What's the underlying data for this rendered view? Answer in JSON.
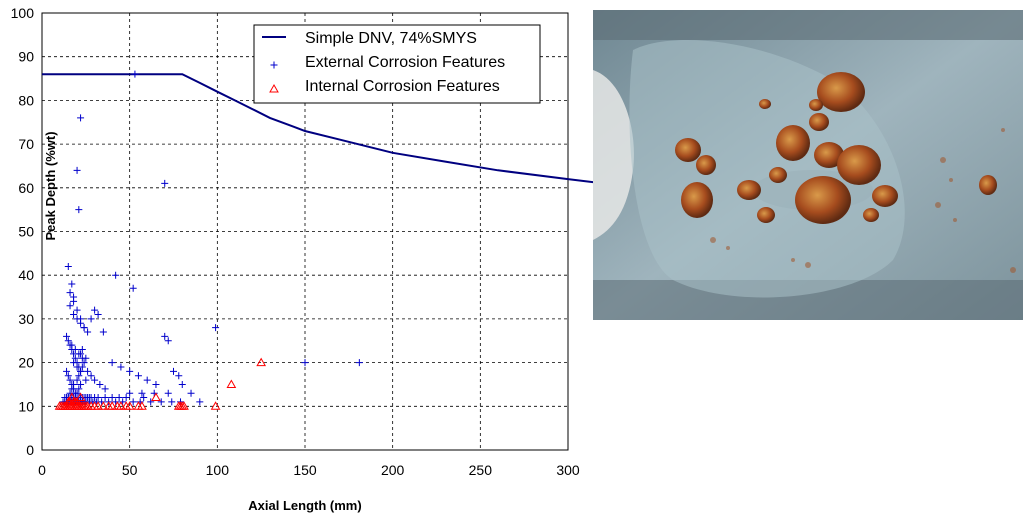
{
  "chart_data": {
    "type": "scatter",
    "title": "",
    "xlabel": "Axial Length (mm)",
    "ylabel": "Peak Depth (%wt)",
    "xlim": [
      0,
      300
    ],
    "ylim": [
      0,
      100
    ],
    "xticks": [
      0,
      50,
      100,
      150,
      200,
      250,
      300
    ],
    "yticks": [
      0,
      10,
      20,
      30,
      40,
      50,
      60,
      70,
      80,
      90,
      100
    ],
    "grid": "dashed",
    "legend_position": "top-right",
    "series": [
      {
        "name": "Simple DNV,  74%SMYS",
        "type": "line",
        "color": "#000080",
        "x": [
          0,
          80,
          90,
          100,
          110,
          120,
          130,
          140,
          150,
          170,
          200,
          230,
          260,
          300,
          320
        ],
        "y": [
          86,
          86,
          84,
          82,
          80,
          78,
          76,
          74.5,
          73,
          71,
          68,
          66,
          64,
          62,
          61
        ]
      },
      {
        "name": "External Corrosion Features",
        "type": "scatter",
        "marker": "+",
        "color": "#0000CC",
        "x": [
          22,
          20,
          21,
          70,
          53,
          15,
          17,
          18,
          42,
          52,
          16,
          18,
          20,
          22,
          24,
          26,
          28,
          30,
          32,
          35,
          14,
          15,
          16,
          17,
          18,
          19,
          20,
          21,
          22,
          23,
          14,
          15,
          16,
          17,
          18,
          19,
          20,
          21,
          22,
          23,
          24,
          25,
          26,
          15,
          16,
          17,
          18,
          19,
          20,
          21,
          22,
          25,
          28,
          30,
          33,
          36,
          40,
          45,
          50,
          55,
          60,
          65,
          70,
          72,
          75,
          78,
          80,
          85,
          99,
          150,
          181,
          12,
          13,
          14,
          15,
          16,
          17,
          18,
          19,
          20,
          21,
          22,
          23,
          24,
          25,
          27,
          29,
          31,
          34,
          38,
          42,
          46,
          48,
          52,
          56,
          58,
          62,
          68,
          74,
          79,
          90,
          13,
          14,
          15,
          16,
          17,
          18,
          19,
          20,
          21,
          22,
          23,
          24,
          25,
          26,
          27,
          28,
          30,
          32,
          36,
          40,
          44,
          50,
          57,
          64,
          72,
          16,
          18,
          20,
          22,
          24,
          17,
          19,
          21,
          23,
          18,
          20,
          22
        ],
        "y": [
          76,
          64,
          55,
          61,
          86,
          42,
          38,
          35,
          40,
          37,
          33,
          31,
          30,
          29,
          28,
          27,
          30,
          32,
          31,
          27,
          26,
          25,
          24,
          23,
          22,
          21,
          20,
          19,
          22,
          23,
          18,
          17,
          16,
          15,
          14,
          13,
          16,
          17,
          18,
          19,
          20,
          21,
          18,
          12,
          13,
          14,
          15,
          12,
          13,
          14,
          15,
          16,
          17,
          16,
          15,
          14,
          20,
          19,
          18,
          17,
          16,
          15,
          26,
          25,
          18,
          17,
          15,
          13,
          28,
          20,
          20,
          11,
          11,
          11,
          11,
          11,
          11,
          11,
          11,
          11,
          11,
          11,
          11,
          11,
          11,
          11,
          11,
          11,
          11,
          11,
          11,
          11,
          12,
          11,
          11,
          12,
          11,
          11,
          11,
          11,
          11,
          12,
          12,
          12,
          12,
          12,
          12,
          12,
          12,
          12,
          12,
          12,
          12,
          12,
          12,
          12,
          12,
          12,
          12,
          12,
          12,
          12,
          13,
          13,
          13,
          13,
          36,
          34,
          32,
          30,
          28,
          24,
          23,
          22,
          21,
          20,
          19,
          18
        ]
      },
      {
        "name": "Internal Corrosion Features",
        "type": "scatter",
        "marker": "triangle",
        "color": "#FF0000",
        "x": [
          10,
          11,
          12,
          13,
          14,
          15,
          16,
          17,
          18,
          19,
          20,
          21,
          22,
          23,
          24,
          25,
          26,
          28,
          30,
          32,
          35,
          38,
          40,
          43,
          45,
          48,
          50,
          55,
          57,
          65,
          78,
          79,
          80,
          81,
          99,
          108,
          125,
          16,
          18,
          20,
          22,
          15,
          17,
          19
        ],
        "y": [
          10,
          10,
          10,
          10,
          10,
          10,
          10,
          10,
          10,
          10,
          10,
          10,
          10,
          10,
          10,
          10,
          10,
          10,
          10,
          10,
          10,
          10,
          10,
          10,
          10,
          10,
          10,
          10,
          10,
          12,
          10,
          10,
          10,
          10,
          10,
          15,
          20,
          11,
          11,
          11,
          12,
          11,
          12,
          11
        ]
      }
    ]
  },
  "photo": {
    "description_icon": "corrosion-photo",
    "colors": {
      "metal": "#8fa3ad",
      "rust": "#a34e22",
      "highlight": "#d9c7a3"
    }
  }
}
